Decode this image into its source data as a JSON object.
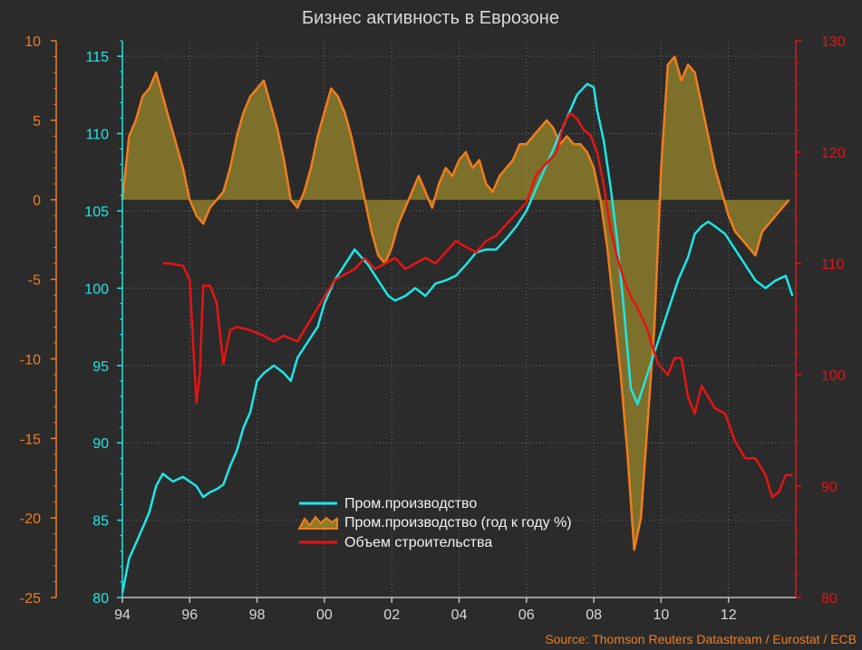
{
  "colors": {
    "background": "#2b2b2b",
    "grid": "#6f6f6f",
    "cyan": "#1ee6e6",
    "orange": "#f07d1e",
    "olive_fill": "#8c7d2a",
    "red": "#e61414",
    "title": "#d9d9d9"
  },
  "chart_data": {
    "type": "line",
    "title": "Бизнес активность в Еврозоне",
    "source": "Source: Thomson Reuters Datastream / Eurostat / ECB",
    "x_range": [
      1994,
      2014
    ],
    "x_ticks": [
      {
        "value": 1994,
        "label": "94"
      },
      {
        "value": 1996,
        "label": "96"
      },
      {
        "value": 1998,
        "label": "98"
      },
      {
        "value": 2000,
        "label": "00"
      },
      {
        "value": 2002,
        "label": "02"
      },
      {
        "value": 2004,
        "label": "04"
      },
      {
        "value": 2006,
        "label": "06"
      },
      {
        "value": 2008,
        "label": "08"
      },
      {
        "value": 2010,
        "label": "10"
      },
      {
        "value": 2012,
        "label": "12"
      }
    ],
    "axes": {
      "orange": {
        "position": "left-outer",
        "range": [
          -25,
          10
        ],
        "ticks": [
          "-25",
          "-20",
          "-15",
          "-10",
          "-5",
          "0",
          "5",
          "10"
        ]
      },
      "cyan": {
        "position": "left-inner",
        "range": [
          80,
          116
        ],
        "ticks": [
          "80",
          "85",
          "90",
          "95",
          "100",
          "105",
          "110",
          "115"
        ]
      },
      "red": {
        "position": "right",
        "range": [
          80,
          130
        ],
        "ticks": [
          "80",
          "90",
          "100",
          "110",
          "120",
          "130"
        ]
      }
    },
    "grid": true,
    "legend_position": "bottom-center",
    "legend": [
      {
        "label": "Пром.производство",
        "color": "#1ee6e6",
        "kind": "line"
      },
      {
        "label": "Пром.производство (год к году %)",
        "color": "#f07d1e",
        "kind": "area"
      },
      {
        "label": "Объем строительства",
        "color": "#e61414",
        "kind": "line"
      }
    ],
    "series": [
      {
        "axis": "cyan",
        "x": [
          1994.0,
          1994.2,
          1994.5,
          1994.8,
          1995.0,
          1995.2,
          1995.5,
          1995.8,
          1996.0,
          1996.2,
          1996.4,
          1996.6,
          1996.8,
          1997.0,
          1997.2,
          1997.4,
          1997.6,
          1997.8,
          1998.0,
          1998.2,
          1998.5,
          1998.8,
          1999.0,
          1999.2,
          1999.5,
          1999.8,
          2000.0,
          2000.3,
          2000.6,
          2000.9,
          2001.1,
          2001.3,
          2001.6,
          2001.9,
          2002.1,
          2002.4,
          2002.7,
          2003.0,
          2003.3,
          2003.6,
          2003.9,
          2004.2,
          2004.5,
          2004.8,
          2005.1,
          2005.4,
          2005.7,
          2006.0,
          2006.3,
          2006.6,
          2006.9,
          2007.2,
          2007.5,
          2007.8,
          2008.0,
          2008.1,
          2008.3,
          2008.5,
          2008.7,
          2008.9,
          2009.1,
          2009.3,
          2009.6,
          2009.9,
          2010.2,
          2010.5,
          2010.8,
          2011.0,
          2011.2,
          2011.4,
          2011.6,
          2011.9,
          2012.2,
          2012.5,
          2012.8,
          2013.1,
          2013.4,
          2013.7,
          2013.9
        ],
        "y": [
          80.3,
          82.5,
          84.0,
          85.5,
          87.2,
          88.0,
          87.5,
          87.8,
          87.5,
          87.2,
          86.5,
          86.8,
          87.0,
          87.3,
          88.5,
          89.5,
          91.0,
          92.0,
          94.0,
          94.5,
          95.0,
          94.5,
          94.0,
          95.5,
          96.5,
          97.5,
          99.0,
          100.5,
          101.5,
          102.5,
          102.0,
          101.5,
          100.5,
          99.5,
          99.2,
          99.5,
          100.0,
          99.5,
          100.3,
          100.5,
          100.8,
          101.5,
          102.3,
          102.5,
          102.5,
          103.2,
          104.0,
          105.0,
          106.5,
          108.0,
          109.5,
          111.0,
          112.5,
          113.2,
          113.0,
          111.5,
          109.5,
          106.5,
          103.0,
          98.5,
          93.5,
          92.5,
          94.5,
          96.5,
          98.5,
          100.5,
          102.0,
          103.5,
          104.0,
          104.3,
          104.0,
          103.5,
          102.5,
          101.5,
          100.5,
          100.0,
          100.5,
          100.8,
          99.5
        ]
      },
      {
        "axis": "orange",
        "x": [
          1994.0,
          1994.2,
          1994.4,
          1994.6,
          1994.8,
          1995.0,
          1995.2,
          1995.4,
          1995.6,
          1995.8,
          1996.0,
          1996.2,
          1996.4,
          1996.6,
          1996.8,
          1997.0,
          1997.2,
          1997.4,
          1997.6,
          1997.8,
          1998.0,
          1998.2,
          1998.4,
          1998.6,
          1998.8,
          1999.0,
          1999.2,
          1999.4,
          1999.6,
          1999.8,
          2000.0,
          2000.2,
          2000.4,
          2000.6,
          2000.8,
          2001.0,
          2001.2,
          2001.4,
          2001.6,
          2001.8,
          2002.0,
          2002.2,
          2002.4,
          2002.6,
          2002.8,
          2003.0,
          2003.2,
          2003.4,
          2003.6,
          2003.8,
          2004.0,
          2004.2,
          2004.4,
          2004.6,
          2004.8,
          2005.0,
          2005.2,
          2005.4,
          2005.6,
          2005.8,
          2006.0,
          2006.2,
          2006.4,
          2006.6,
          2006.8,
          2007.0,
          2007.2,
          2007.4,
          2007.6,
          2007.8,
          2008.0,
          2008.2,
          2008.4,
          2008.6,
          2008.8,
          2009.0,
          2009.2,
          2009.4,
          2009.6,
          2009.8,
          2010.0,
          2010.2,
          2010.4,
          2010.6,
          2010.8,
          2011.0,
          2011.2,
          2011.4,
          2011.6,
          2011.8,
          2012.0,
          2012.2,
          2012.4,
          2012.6,
          2012.8,
          2013.0,
          2013.2,
          2013.4,
          2013.6,
          2013.8
        ],
        "y": [
          0.0,
          4.0,
          5.0,
          6.5,
          7.0,
          8.0,
          6.5,
          5.0,
          3.5,
          2.0,
          0.0,
          -1.0,
          -1.5,
          -0.5,
          0.0,
          0.5,
          2.0,
          4.0,
          5.5,
          6.5,
          7.0,
          7.5,
          6.0,
          4.5,
          2.5,
          0.0,
          -0.5,
          0.5,
          2.0,
          4.0,
          5.5,
          7.0,
          6.5,
          5.5,
          4.0,
          2.0,
          0.0,
          -2.0,
          -3.5,
          -4.0,
          -3.0,
          -1.5,
          -0.5,
          0.5,
          1.5,
          0.5,
          -0.5,
          1.0,
          2.0,
          1.5,
          2.5,
          3.0,
          2.0,
          2.5,
          1.0,
          0.5,
          1.5,
          2.0,
          2.5,
          3.5,
          3.5,
          4.0,
          4.5,
          5.0,
          4.5,
          3.5,
          4.0,
          3.5,
          3.5,
          3.0,
          2.0,
          0.0,
          -3.0,
          -7.0,
          -11.0,
          -16.0,
          -22.0,
          -20.0,
          -14.0,
          -8.0,
          2.0,
          8.5,
          9.0,
          7.5,
          8.5,
          8.0,
          6.0,
          4.0,
          2.0,
          0.5,
          -1.0,
          -2.0,
          -2.5,
          -3.0,
          -3.5,
          -2.0,
          -1.5,
          -1.0,
          -0.5,
          0.0
        ]
      },
      {
        "axis": "red",
        "x": [
          1995.2,
          1995.4,
          1995.8,
          1996.0,
          1996.1,
          1996.2,
          1996.3,
          1996.4,
          1996.6,
          1996.8,
          1997.0,
          1997.2,
          1997.4,
          1997.8,
          1998.2,
          1998.5,
          1998.8,
          1999.2,
          1999.6,
          2000.0,
          2000.3,
          2000.6,
          2000.9,
          2001.2,
          2001.5,
          2001.8,
          2002.1,
          2002.4,
          2002.7,
          2003.0,
          2003.3,
          2003.6,
          2003.9,
          2004.2,
          2004.5,
          2004.8,
          2005.1,
          2005.4,
          2005.7,
          2006.0,
          2006.3,
          2006.6,
          2006.9,
          2007.1,
          2007.3,
          2007.5,
          2007.7,
          2007.9,
          2008.1,
          2008.3,
          2008.5,
          2008.7,
          2008.9,
          2009.1,
          2009.3,
          2009.6,
          2009.9,
          2010.2,
          2010.4,
          2010.6,
          2010.8,
          2011.0,
          2011.2,
          2011.4,
          2011.6,
          2011.9,
          2012.2,
          2012.5,
          2012.8,
          2013.1,
          2013.3,
          2013.5,
          2013.7,
          2013.9
        ],
        "y": [
          110.0,
          110.0,
          109.8,
          108.5,
          103.0,
          97.5,
          100.0,
          108.0,
          108.0,
          106.5,
          101.0,
          104.0,
          104.3,
          104.0,
          103.5,
          103.0,
          103.5,
          103.0,
          105.0,
          107.0,
          108.5,
          109.0,
          109.5,
          110.5,
          109.5,
          110.0,
          110.5,
          109.5,
          110.0,
          110.5,
          110.0,
          111.0,
          112.0,
          111.5,
          111.0,
          112.0,
          112.5,
          113.5,
          114.5,
          115.5,
          118.0,
          119.0,
          120.0,
          122.5,
          123.5,
          123.0,
          122.0,
          121.5,
          120.0,
          117.0,
          113.0,
          110.5,
          108.5,
          107.0,
          106.0,
          104.0,
          101.0,
          100.0,
          101.5,
          101.5,
          98.0,
          96.5,
          99.0,
          98.0,
          97.0,
          96.5,
          94.0,
          92.5,
          92.5,
          91.0,
          89.0,
          89.5,
          91.0,
          91.0
        ]
      }
    ]
  }
}
